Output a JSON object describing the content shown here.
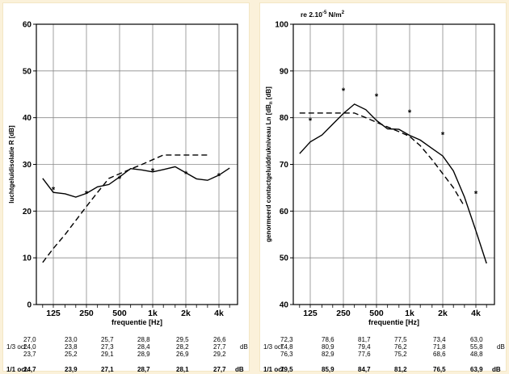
{
  "chart_data": [
    {
      "type": "line",
      "xlabel": "frequentie [Hz]",
      "ylabel": "luchtgeluidisolatie R [dB]",
      "x_tick_labels": [
        "125",
        "250",
        "500",
        "1k",
        "2k",
        "4k"
      ],
      "ylim": [
        0,
        60
      ],
      "yticks": [
        0,
        10,
        20,
        30,
        40,
        50,
        60
      ],
      "y_tick_labels": [
        "0",
        "10",
        "20",
        "30",
        "40",
        "50",
        "60"
      ],
      "series": [
        {
          "style": "solid",
          "values": [
            [
              100,
              27.0
            ],
            [
              125,
              24.0
            ],
            [
              160,
              23.7
            ],
            [
              200,
              23.0
            ],
            [
              250,
              23.8
            ],
            [
              315,
              25.2
            ],
            [
              400,
              25.7
            ],
            [
              500,
              27.3
            ],
            [
              630,
              29.1
            ],
            [
              800,
              28.8
            ],
            [
              1000,
              28.4
            ],
            [
              1250,
              28.9
            ],
            [
              1600,
              29.5
            ],
            [
              2000,
              28.2
            ],
            [
              2500,
              26.9
            ],
            [
              3150,
              26.6
            ],
            [
              4000,
              27.7
            ],
            [
              5000,
              29.2
            ]
          ]
        },
        {
          "style": "dashed",
          "values": [
            [
              100,
              9
            ],
            [
              125,
              12
            ],
            [
              160,
              15
            ],
            [
              200,
              18
            ],
            [
              250,
              21
            ],
            [
              315,
              24
            ],
            [
              400,
              27
            ],
            [
              500,
              28
            ],
            [
              630,
              29
            ],
            [
              800,
              30
            ],
            [
              1000,
              31
            ],
            [
              1250,
              32
            ],
            [
              1600,
              32
            ],
            [
              2000,
              32
            ],
            [
              2500,
              32
            ],
            [
              3150,
              32
            ]
          ]
        },
        {
          "style": "markers",
          "values": [
            [
              125,
              24.7
            ],
            [
              250,
              23.9
            ],
            [
              500,
              27.1
            ],
            [
              1000,
              28.7
            ],
            [
              2000,
              28.1
            ],
            [
              4000,
              27.7
            ]
          ]
        }
      ],
      "table": {
        "row_label": "1/3 oct.",
        "unit": "dB",
        "rows": [
          [
            "27,0",
            "23,0",
            "25,7",
            "28,8",
            "29,5",
            "26,6"
          ],
          [
            "24,0",
            "23,8",
            "27,3",
            "28,4",
            "28,2",
            "27,7"
          ],
          [
            "23,7",
            "25,2",
            "29,1",
            "28,9",
            "26,9",
            "29,2"
          ]
        ],
        "oct_label": "1/1 oct.",
        "oct": [
          "24,7",
          "23,9",
          "27,1",
          "28,7",
          "28,1",
          "27,7"
        ],
        "oct_unit": "dB"
      }
    },
    {
      "type": "line",
      "xlabel": "frequentie [Hz]",
      "ylabel": "genormeerd contactgeluiddrukniveau Ln [dB]",
      "note": "re 2.10-5 N/m2",
      "x_tick_labels": [
        "125",
        "250",
        "500",
        "1k",
        "2k",
        "4k"
      ],
      "ylim": [
        40,
        100
      ],
      "yticks": [
        40,
        50,
        60,
        70,
        80,
        90,
        100
      ],
      "y_tick_labels": [
        "40",
        "50",
        "60",
        "70",
        "80",
        "90",
        "100"
      ],
      "series": [
        {
          "style": "solid",
          "values": [
            [
              100,
              72.3
            ],
            [
              125,
              74.8
            ],
            [
              160,
              76.3
            ],
            [
              200,
              78.6
            ],
            [
              250,
              80.9
            ],
            [
              315,
              82.9
            ],
            [
              400,
              81.7
            ],
            [
              500,
              79.4
            ],
            [
              630,
              77.6
            ],
            [
              800,
              77.5
            ],
            [
              1000,
              76.2
            ],
            [
              1250,
              75.2
            ],
            [
              1600,
              73.4
            ],
            [
              2000,
              71.8
            ],
            [
              2500,
              68.6
            ],
            [
              3150,
              63.0
            ],
            [
              4000,
              55.8
            ],
            [
              5000,
              48.8
            ]
          ]
        },
        {
          "style": "dashed",
          "values": [
            [
              100,
              81
            ],
            [
              125,
              81
            ],
            [
              160,
              81
            ],
            [
              200,
              81
            ],
            [
              250,
              81
            ],
            [
              315,
              81
            ],
            [
              400,
              80
            ],
            [
              500,
              79
            ],
            [
              630,
              78
            ],
            [
              800,
              77
            ],
            [
              1000,
              76
            ],
            [
              1250,
              74
            ],
            [
              1600,
              71
            ],
            [
              2000,
              68
            ],
            [
              2500,
              65
            ],
            [
              3150,
              61
            ]
          ]
        },
        {
          "style": "markers",
          "values": [
            [
              125,
              79.5
            ],
            [
              250,
              85.9
            ],
            [
              500,
              84.7
            ],
            [
              1000,
              81.2
            ],
            [
              2000,
              76.5
            ],
            [
              4000,
              63.9
            ]
          ]
        }
      ],
      "table": {
        "row_label": "1/3 oct.",
        "unit": "dB",
        "rows": [
          [
            "72,3",
            "78,6",
            "81,7",
            "77,5",
            "73,4",
            "63,0"
          ],
          [
            "74,8",
            "80,9",
            "79,4",
            "76,2",
            "71,8",
            "55,8"
          ],
          [
            "76,3",
            "82,9",
            "77,6",
            "75,2",
            "68,6",
            "48,8"
          ]
        ],
        "oct_label": "1/1 oct.",
        "oct": [
          "79,5",
          "85,9",
          "84,7",
          "81,2",
          "76,5",
          "63,9"
        ],
        "oct_unit": "dB"
      }
    }
  ],
  "colors": {
    "line": "#000000",
    "grid": "#7f7f7f",
    "panel": "#ffffff",
    "background": "#fbf1da"
  }
}
